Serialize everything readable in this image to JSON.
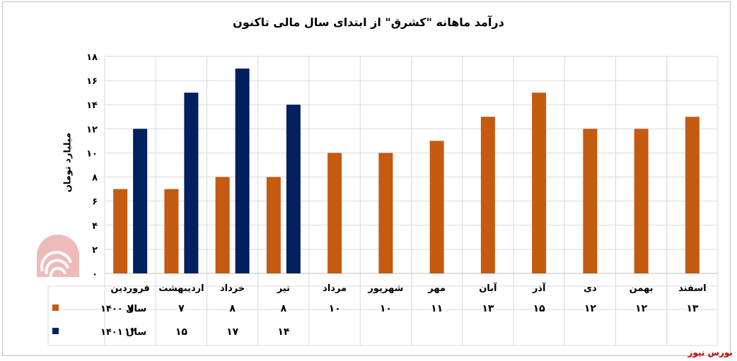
{
  "chart_data": {
    "type": "bar",
    "title": "درآمد ماهانه \"کشرق\" از ابتدای سال مالی تاکنون",
    "ylabel": "میلیارد تومان",
    "ylim": [
      0,
      18
    ],
    "yticks": [
      "۰",
      "۲",
      "۴",
      "۶",
      "۸",
      "۱۰",
      "۱۲",
      "۱۴",
      "۱۶",
      "۱۸"
    ],
    "grid": true,
    "legend": "table-left",
    "categories": [
      "فروردین",
      "اردیبهشت",
      "خرداد",
      "تیر",
      "مرداد",
      "شهریور",
      "مهر",
      "آبان",
      "آذر",
      "دی",
      "بهمن",
      "اسفند"
    ],
    "series": [
      {
        "name": "سال ۱۴۰۰",
        "color": "#c55a11",
        "values": [
          7,
          7,
          8,
          8,
          10,
          10,
          11,
          13,
          15,
          12,
          12,
          13
        ],
        "labels": [
          "۷",
          "۷",
          "۸",
          "۸",
          "۱۰",
          "۱۰",
          "۱۱",
          "۱۳",
          "۱۵",
          "۱۲",
          "۱۲",
          "۱۳"
        ]
      },
      {
        "name": "سال ۱۴۰۱",
        "color": "#002060",
        "values": [
          12,
          15,
          17,
          14,
          null,
          null,
          null,
          null,
          null,
          null,
          null,
          null
        ],
        "labels": [
          "۱۲",
          "۱۵",
          "۱۷",
          "۱۴",
          "",
          "",
          "",
          "",
          "",
          "",
          "",
          ""
        ]
      }
    ]
  },
  "source": "بورس نیوز",
  "watermark": "بورس نیوز"
}
